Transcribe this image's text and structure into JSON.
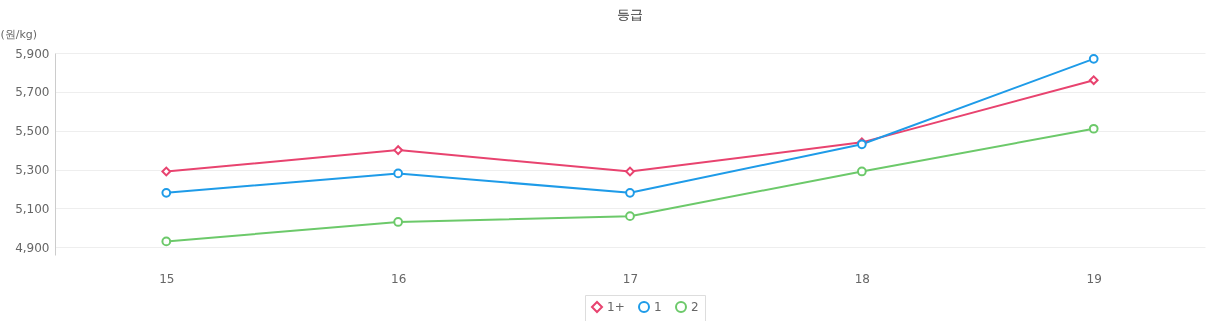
{
  "chart_data": {
    "type": "line",
    "title": "등급",
    "ylabel": "(원/kg)",
    "categories": [
      "15",
      "16",
      "17",
      "18",
      "19"
    ],
    "series": [
      {
        "name": "1+",
        "color": "#e8436f",
        "marker": "diamond",
        "values": [
          5290,
          5400,
          5290,
          5440,
          5760
        ]
      },
      {
        "name": "1",
        "color": "#1e9be8",
        "marker": "circle",
        "values": [
          5180,
          5280,
          5180,
          5430,
          5870
        ]
      },
      {
        "name": "2",
        "color": "#6cc96a",
        "marker": "circle",
        "values": [
          4930,
          5030,
          5060,
          5290,
          5510
        ]
      }
    ],
    "ylim": [
      4860,
      5900
    ],
    "yticks": [
      {
        "value": 4900,
        "label": "4,900"
      },
      {
        "value": 5100,
        "label": "5,100"
      },
      {
        "value": 5300,
        "label": "5,300"
      },
      {
        "value": 5500,
        "label": "5,500"
      },
      {
        "value": 5700,
        "label": "5,700"
      },
      {
        "value": 5900,
        "label": "5,900"
      }
    ],
    "grid": "y",
    "legend": "bottom",
    "marker": "circle",
    "line_style": "solid"
  }
}
